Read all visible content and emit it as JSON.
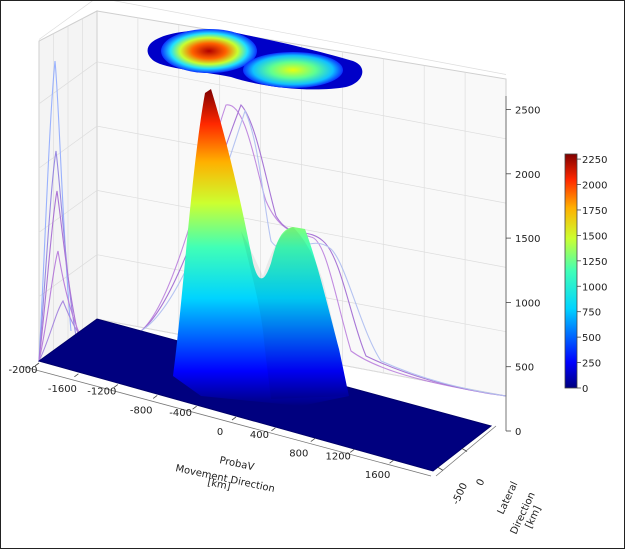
{
  "chart_data": {
    "type": "surface3d",
    "title": "",
    "x_axis": {
      "label_lines": [
        "ProbaV",
        "Movement Direction",
        "[km]"
      ],
      "ticks": [
        "-2000",
        "-1600",
        "-1200",
        "-800",
        "-400",
        "0",
        "400",
        "800",
        "1200",
        "1600"
      ],
      "range": [
        -2000,
        2000
      ]
    },
    "y_axis": {
      "label_lines": [
        "Lateral",
        "Direction",
        "[km]"
      ],
      "ticks": [
        "-500",
        "0"
      ],
      "range": [
        -600,
        600
      ]
    },
    "z_axis": {
      "ticks": [
        "0",
        "500",
        "1000",
        "1500",
        "2000",
        "2500"
      ],
      "range": [
        0,
        2700
      ]
    },
    "colorbar": {
      "ticks": [
        "0",
        "250",
        "500",
        "750",
        "1000",
        "1250",
        "1500",
        "1750",
        "2000",
        "2250"
      ],
      "range": [
        0,
        2300
      ],
      "colormap": "jet"
    },
    "peaks": [
      {
        "x": -150,
        "z": 2650
      },
      {
        "x": 450,
        "z": 1600
      }
    ],
    "grid": true,
    "colors": {
      "background": "#ffffff",
      "floor": "#00007f",
      "projection_lines": "#9a7fd6"
    }
  }
}
